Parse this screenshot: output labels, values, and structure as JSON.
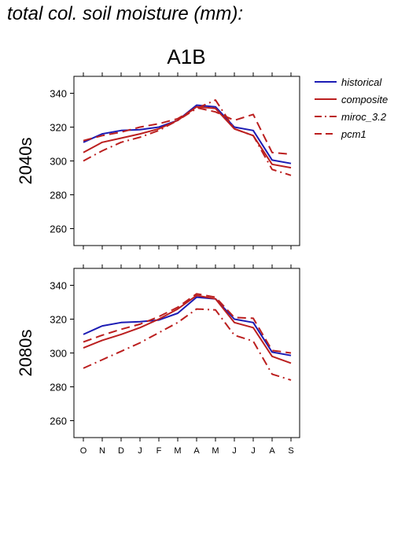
{
  "figure_title": "total col. soil moisture (mm):",
  "chart_data": {
    "type": "line",
    "title": "A1B",
    "months": [
      "O",
      "N",
      "D",
      "J",
      "F",
      "M",
      "A",
      "M",
      "J",
      "J",
      "A",
      "S"
    ],
    "ylim": [
      250,
      350
    ],
    "yticks": [
      260,
      280,
      300,
      320,
      340
    ],
    "legend_position": "right",
    "legend": [
      {
        "name": "historical",
        "color": "#1c1cb4",
        "style": "solid"
      },
      {
        "name": "composite",
        "color": "#bb1f1f",
        "style": "solid"
      },
      {
        "name": "miroc_3.2",
        "color": "#bb1f1f",
        "style": "dashdot"
      },
      {
        "name": "pcm1",
        "color": "#bb1f1f",
        "style": "dashed"
      }
    ],
    "panels": [
      {
        "label": "2040s",
        "series": [
          {
            "name": "historical",
            "values": [
              311,
              316,
              318,
              318.5,
              320,
              324,
              333,
              332,
              320,
              318,
              300.5,
              298.5
            ]
          },
          {
            "name": "composite",
            "values": [
              305,
              311,
              313.5,
              316,
              319,
              324,
              332,
              331,
              319,
              315,
              298,
              296
            ]
          },
          {
            "name": "miroc_3.2",
            "values": [
              300,
              306,
              311,
              314,
              318,
              324,
              331,
              336,
              319,
              315,
              295,
              291.5
            ]
          },
          {
            "name": "pcm1",
            "values": [
              312,
              315,
              317,
              320,
              322,
              325,
              331.5,
              329,
              324,
              327.5,
              305,
              304
            ]
          }
        ]
      },
      {
        "label": "2080s",
        "series": [
          {
            "name": "historical",
            "values": [
              311,
              316,
              318,
              318.5,
              319.5,
              323.5,
              333,
              332,
              320,
              318,
              300.5,
              298.5
            ]
          },
          {
            "name": "composite",
            "values": [
              303,
              307.5,
              311,
              315,
              320,
              326,
              334,
              332,
              318,
              315,
              298,
              294
            ]
          },
          {
            "name": "miroc_3.2",
            "values": [
              291,
              296,
              301,
              306,
              312,
              318,
              326,
              325.5,
              310.5,
              307,
              287.5,
              284
            ]
          },
          {
            "name": "pcm1",
            "values": [
              306.5,
              310.5,
              314,
              317,
              321.5,
              327,
              335,
              333,
              321,
              320.5,
              301.5,
              300
            ]
          }
        ]
      }
    ]
  }
}
